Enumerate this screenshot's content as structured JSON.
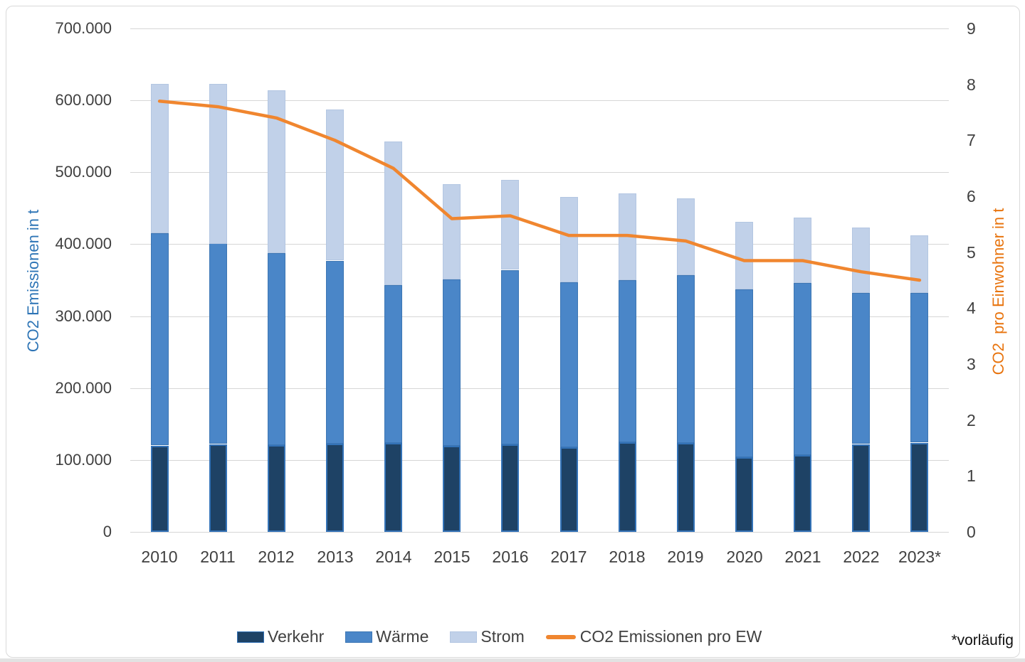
{
  "colors": {
    "verkehr_fill": "#1e4265",
    "verkehr_border": "#3372b7",
    "waerme_fill": "#4a86c8",
    "waerme_border": "#3c76b4",
    "strom_fill": "#c1d1e9",
    "strom_border": "#b3c6e2",
    "line_orange": "#f0862f",
    "left_title_blue": "#2e75b6",
    "right_title_orange": "#e8740e",
    "gridline": "#d6d6d6",
    "tick_text": "#404040"
  },
  "axes": {
    "left": {
      "title": "CO2 Emissionen in t",
      "ticks": [
        "0",
        "100.000",
        "200.000",
        "300.000",
        "400.000",
        "500.000",
        "600.000",
        "700.000"
      ]
    },
    "right": {
      "title": "CO2  pro Einwohner in t",
      "ticks": [
        "0",
        "1",
        "2",
        "3",
        "4",
        "5",
        "6",
        "7",
        "8",
        "9"
      ]
    }
  },
  "legend": {
    "items": [
      {
        "label": "Verkehr",
        "kind": "swatch",
        "color": "#1e4265",
        "border": "#3372b7"
      },
      {
        "label": "Wärme",
        "kind": "swatch",
        "color": "#4a86c8",
        "border": "#3c76b4"
      },
      {
        "label": "Strom",
        "kind": "swatch",
        "color": "#c1d1e9",
        "border": "#b3c6e2"
      },
      {
        "label": "CO2 Emissionen pro EW",
        "kind": "line",
        "color": "#f0862f"
      }
    ]
  },
  "footnote": "*vorläufig",
  "chart_data": {
    "type": "bar",
    "subtype": "stacked-columns-with-line",
    "title": "",
    "categories": [
      "2010",
      "2011",
      "2012",
      "2013",
      "2014",
      "2015",
      "2016",
      "2017",
      "2018",
      "2019",
      "2020",
      "2021",
      "2022",
      "2023*"
    ],
    "series": [
      {
        "name": "Verkehr",
        "axis": "left",
        "color": "#1e4265",
        "values": [
          120000,
          122000,
          121000,
          123000,
          124000,
          120000,
          122000,
          118000,
          125000,
          124000,
          104000,
          107000,
          122000,
          124000
        ]
      },
      {
        "name": "Wärme",
        "axis": "left",
        "color": "#4a86c8",
        "values": [
          295000,
          279000,
          267000,
          254000,
          219000,
          231000,
          242000,
          229000,
          225000,
          233000,
          233000,
          239000,
          210000,
          208000
        ]
      },
      {
        "name": "Strom",
        "axis": "left",
        "color": "#c1d1e9",
        "values": [
          208000,
          222000,
          226000,
          210000,
          200000,
          132000,
          125000,
          119000,
          121000,
          107000,
          94000,
          91000,
          91000,
          80000
        ]
      }
    ],
    "line_series": [
      {
        "name": "CO2 Emissionen pro EW",
        "axis": "right",
        "color": "#f0862f",
        "values": [
          7.7,
          7.6,
          7.4,
          7.0,
          6.5,
          5.6,
          5.65,
          5.3,
          5.3,
          5.2,
          4.85,
          4.85,
          4.65,
          4.5
        ]
      }
    ],
    "ylabel_left": "CO2 Emissionen in t",
    "ylabel_right": "CO2  pro Einwohner in t",
    "ylim_left": [
      0,
      700000
    ],
    "ylim_right": [
      0,
      9
    ],
    "grid": true,
    "legend_position": "bottom",
    "footnote": "*vorläufig"
  }
}
